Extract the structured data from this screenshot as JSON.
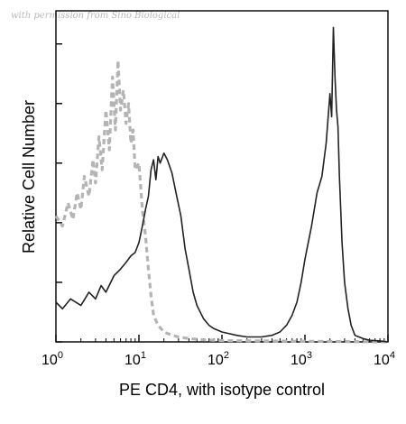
{
  "watermark": "with permission from Sino Biological",
  "chart_data": {
    "type": "line",
    "title": "",
    "xlabel": "PE CD4, with isotype control",
    "ylabel": "Relative Cell Number",
    "x_scale": "log",
    "xlim": [
      1,
      10000
    ],
    "ylim": [
      0,
      100
    ],
    "x_ticks": [
      {
        "value": 1,
        "base": "10",
        "exp": "0"
      },
      {
        "value": 10,
        "base": "10",
        "exp": "1"
      },
      {
        "value": 100,
        "base": "10",
        "exp": "2"
      },
      {
        "value": 1000,
        "base": "10",
        "exp": "3"
      },
      {
        "value": 10000,
        "base": "10",
        "exp": "4"
      }
    ],
    "y_ticks": [
      0,
      18,
      36,
      54,
      72,
      90
    ],
    "grid": false,
    "legend": "none",
    "series": [
      {
        "style": "dashed",
        "color": "#b4b4b4",
        "x": [
          1.0,
          1.2,
          1.4,
          1.6,
          1.8,
          2.0,
          2.2,
          2.5,
          2.8,
          3.0,
          3.3,
          3.6,
          4.0,
          4.4,
          4.8,
          5.2,
          5.6,
          6.0,
          6.5,
          7.0,
          7.5,
          8.0,
          8.5,
          9.0,
          10,
          11,
          12,
          13,
          14,
          15,
          17,
          20,
          25,
          30,
          40,
          60,
          100,
          1000,
          10000
        ],
        "y": [
          38,
          35,
          42,
          37,
          45,
          40,
          50,
          44,
          55,
          48,
          62,
          52,
          70,
          58,
          80,
          64,
          85,
          70,
          76,
          66,
          72,
          60,
          64,
          52,
          54,
          40,
          32,
          22,
          14,
          8,
          5,
          3,
          2,
          1.5,
          1,
          0.6,
          0.4,
          0.2,
          0
        ]
      },
      {
        "style": "solid",
        "color": "#222222",
        "x": [
          1.0,
          1.2,
          1.5,
          2.0,
          2.5,
          3.0,
          3.5,
          4.0,
          5.0,
          6.0,
          7.0,
          8.0,
          9.0,
          10,
          11,
          12,
          13,
          14,
          15,
          16,
          17,
          18,
          20,
          22,
          25,
          28,
          32,
          36,
          40,
          45,
          50,
          60,
          70,
          80,
          100,
          150,
          200,
          300,
          400,
          500,
          600,
          700,
          800,
          900,
          1000,
          1200,
          1400,
          1600,
          1800,
          2000,
          2100,
          2200,
          2300,
          2400,
          2500,
          2600,
          2800,
          3000,
          3300,
          3600,
          4000,
          5000,
          6000,
          8000,
          10000
        ],
        "y": [
          12,
          10,
          13,
          11,
          15,
          13,
          17,
          15,
          20,
          22,
          24,
          26,
          27,
          30,
          35,
          40,
          44,
          52,
          55,
          49,
          56,
          54,
          57,
          55,
          51,
          45,
          38,
          28,
          22,
          15,
          11,
          7,
          5,
          4,
          3,
          2,
          1.5,
          1.5,
          2,
          3,
          5,
          8,
          12,
          18,
          25,
          35,
          45,
          50,
          60,
          75,
          68,
          95,
          80,
          70,
          65,
          50,
          30,
          18,
          10,
          5,
          2,
          1,
          0.5,
          0.3,
          0
        ]
      }
    ]
  }
}
